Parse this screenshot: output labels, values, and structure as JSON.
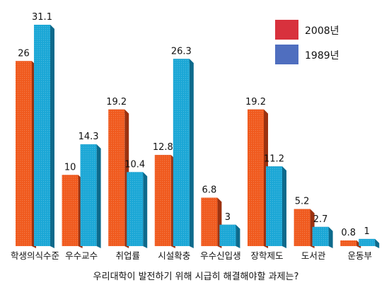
{
  "chart_data": {
    "type": "bar",
    "title": "",
    "xlabel": "우리대학이 발전하기 위해 시급히 해결해야할 과제는?",
    "ylabel": "",
    "ylim": [
      0,
      31.1
    ],
    "grid": false,
    "legend_position": "top-right",
    "categories": [
      "학생의식수준",
      "우수교수",
      "취업률",
      "시설확충",
      "우수신입생",
      "장학제도",
      "도서관",
      "운동부"
    ],
    "series": [
      {
        "name": "2008년",
        "color": "#f05a1e",
        "values": [
          26,
          10,
          19.2,
          12.8,
          6.8,
          19.2,
          5.2,
          0.8
        ]
      },
      {
        "name": "1989년",
        "color": "#1ba7d6",
        "values": [
          31.1,
          14.3,
          10.4,
          26.3,
          3,
          11.2,
          2.7,
          1
        ]
      }
    ],
    "legend_colors": [
      "#d8313d",
      "#4f6ebf"
    ]
  }
}
